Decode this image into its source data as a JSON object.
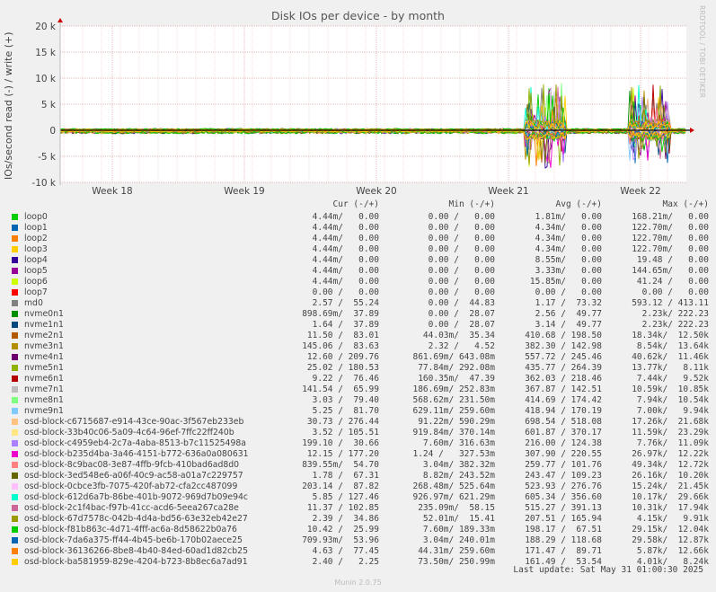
{
  "chart_data": {
    "type": "line",
    "title": "Disk IOs per device - by month",
    "ylabel": "IOs/second read (-) / write (+)",
    "ylim": [
      -10000,
      20000
    ],
    "yticks": [
      {
        "value": 20000,
        "label": "20 k"
      },
      {
        "value": 15000,
        "label": "15 k"
      },
      {
        "value": 10000,
        "label": "10 k"
      },
      {
        "value": 5000,
        "label": "5 k"
      },
      {
        "value": 0,
        "label": "0"
      },
      {
        "value": -5000,
        "label": "-5 k"
      },
      {
        "value": -10000,
        "label": "-10 k"
      }
    ],
    "xticks": [
      "Week 18",
      "Week 19",
      "Week 20",
      "Week 21",
      "Week 22"
    ],
    "grid": true,
    "watermark": "RRDTOOL / TOBI OETIKER",
    "legend_header": {
      "cur": "Cur (-/+)",
      "min": "Min (-/+)",
      "avg": "Avg (-/+)",
      "max": "Max (-/+)"
    },
    "series": [
      {
        "name": "loop0",
        "color": "#00cc00",
        "cur": "4.44m/   0.00",
        "min": "0.00 /   0.00",
        "avg": "1.81m/   0.00",
        "max": "168.21m/   0.00"
      },
      {
        "name": "loop1",
        "color": "#0066b3",
        "cur": "4.44m/   0.00",
        "min": "0.00 /   0.00",
        "avg": "4.34m/   0.00",
        "max": "122.70m/   0.00"
      },
      {
        "name": "loop2",
        "color": "#ff8000",
        "cur": "4.44m/   0.00",
        "min": "0.00 /   0.00",
        "avg": "4.34m/   0.00",
        "max": "122.70m/   0.00"
      },
      {
        "name": "loop3",
        "color": "#ffcc00",
        "cur": "4.44m/   0.00",
        "min": "0.00 /   0.00",
        "avg": "4.34m/   0.00",
        "max": "122.70m/   0.00"
      },
      {
        "name": "loop4",
        "color": "#330099",
        "cur": "4.44m/   0.00",
        "min": "0.00 /   0.00",
        "avg": "8.55m/   0.00",
        "max": "19.48 /   0.00"
      },
      {
        "name": "loop5",
        "color": "#990099",
        "cur": "4.44m/   0.00",
        "min": "0.00 /   0.00",
        "avg": "3.33m/   0.00",
        "max": "144.65m/   0.00"
      },
      {
        "name": "loop6",
        "color": "#ccff00",
        "cur": "4.44m/   0.00",
        "min": "0.00 /   0.00",
        "avg": "15.85m/   0.00",
        "max": "41.24 /   0.00"
      },
      {
        "name": "loop7",
        "color": "#ff0000",
        "cur": "0.00 /   0.00",
        "min": "0.00 /   0.00",
        "avg": "0.00 /   0.00",
        "max": "0.00 /   0.00"
      },
      {
        "name": "md0",
        "color": "#808080",
        "cur": "2.57 /  55.24",
        "min": "0.00 /  44.83",
        "avg": "1.17 /  73.32",
        "max": "593.12 / 413.11"
      },
      {
        "name": "nvme0n1",
        "color": "#008f00",
        "cur": "898.69m/  37.89",
        "min": "0.00 /  28.07",
        "avg": "2.56 /  49.77",
        "max": "2.23k/ 222.23"
      },
      {
        "name": "nvme1n1",
        "color": "#00487d",
        "cur": "1.64 /  37.89",
        "min": "0.00 /  28.07",
        "avg": "3.14 /  49.77",
        "max": "2.23k/ 222.23"
      },
      {
        "name": "nvme2n1",
        "color": "#b35a00",
        "cur": "11.50 /  83.01",
        "min": "44.03m/  35.34",
        "avg": "410.68 / 198.50",
        "max": "18.34k/  12.50k"
      },
      {
        "name": "nvme3n1",
        "color": "#b38f00",
        "cur": "145.06 /  83.63",
        "min": "2.32 /   4.52",
        "avg": "382.30 / 142.98",
        "max": "8.54k/  13.64k"
      },
      {
        "name": "nvme4n1",
        "color": "#6b006b",
        "cur": "12.60 / 209.76",
        "min": "861.69m/ 643.08m",
        "avg": "557.72 / 245.46",
        "max": "40.62k/  11.46k"
      },
      {
        "name": "nvme5n1",
        "color": "#8fb300",
        "cur": "25.02 / 180.53",
        "min": "77.84m/ 292.08m",
        "avg": "435.77 / 264.39",
        "max": "13.77k/   8.11k"
      },
      {
        "name": "nvme6n1",
        "color": "#b30000",
        "cur": "9.22 /  76.46",
        "min": "160.35m/  47.39",
        "avg": "362.03 / 218.46",
        "max": "7.44k/   9.52k"
      },
      {
        "name": "nvme7n1",
        "color": "#bebebe",
        "cur": "141.54 /  65.99",
        "min": "186.69m/ 252.83m",
        "avg": "367.87 / 142.51",
        "max": "10.59k/  10.85k"
      },
      {
        "name": "nvme8n1",
        "color": "#80ff80",
        "cur": "3.03 /  79.40",
        "min": "568.62m/ 231.50m",
        "avg": "414.69 / 174.42",
        "max": "7.94k/  10.54k"
      },
      {
        "name": "nvme9n1",
        "color": "#80c9ff",
        "cur": "5.25 /  81.70",
        "min": "629.11m/ 259.60m",
        "avg": "418.94 / 170.19",
        "max": "7.00k/   9.94k"
      },
      {
        "name": "osd-block-c6715687-e914-43ce-90ac-3f567eb233eb",
        "color": "#ffc080",
        "cur": "30.73 / 276.44",
        "min": "91.22m/ 590.29m",
        "avg": "698.54 / 518.08",
        "max": "17.26k/  21.68k"
      },
      {
        "name": "osd-block-33b40c06-5a09-4c64-96ef-7ffc22ff240b",
        "color": "#ffe680",
        "cur": "3.52 / 105.51",
        "min": "919.84m/ 370.14m",
        "avg": "601.87 / 370.17",
        "max": "11.59k/  23.29k"
      },
      {
        "name": "osd-block-c4959eb4-2c7a-4aba-8513-b7c11525498a",
        "color": "#aa80ff",
        "cur": "199.10 /  30.66",
        "min": "7.60m/ 316.63m",
        "avg": "216.00 / 124.38",
        "max": "7.76k/  11.09k"
      },
      {
        "name": "osd-block-b235d4ba-3a46-4151-b772-636a0a080631",
        "color": "#ee00cc",
        "cur": "12.15 / 177.20",
        "min": "1.24 /   327.53m",
        "avg": "307.90 / 220.55",
        "max": "26.97k/  12.22k"
      },
      {
        "name": "osd-block-8c9bac08-3e87-4ffb-9fcb-410bad6ad8d0",
        "color": "#ff8080",
        "cur": "839.55m/  54.70",
        "min": "3.04m/ 382.32m",
        "avg": "259.77 / 101.76",
        "max": "49.34k/  12.72k"
      },
      {
        "name": "osd-block-3ed548e6-a06f-40c9-ac58-a01a7c229757",
        "color": "#666600",
        "cur": "1.78 /  67.31",
        "min": "8.82m/ 243.52m",
        "avg": "243.47 / 109.23",
        "max": "26.16k/  10.20k"
      },
      {
        "name": "osd-block-0cbce3fb-7075-420f-ab72-cfa2cc487099",
        "color": "#ffbfff",
        "cur": "203.14 /  87.82",
        "min": "268.48m/ 525.64m",
        "avg": "523.93 / 276.76",
        "max": "15.24k/  21.45k"
      },
      {
        "name": "osd-block-612d6a7b-86be-401b-9072-969d7b09e94c",
        "color": "#00ffcc",
        "cur": "5.85 / 127.46",
        "min": "926.97m/ 621.29m",
        "avg": "605.34 / 356.60",
        "max": "10.17k/  29.66k"
      },
      {
        "name": "osd-block-2c1f4bac-f97b-41cc-acd6-5eea267ca28e",
        "color": "#cc6699",
        "cur": "11.37 / 102.85",
        "min": "235.09m/  58.15",
        "avg": "515.27 / 391.13",
        "max": "10.31k/  17.94k"
      },
      {
        "name": "osd-block-67d7578c-042b-4d4a-bd56-63e32eb42e27",
        "color": "#999900",
        "cur": "2.39 /  34.86",
        "min": "52.01m/  15.41",
        "avg": "207.51 / 165.94",
        "max": "4.15k/   9.91k"
      },
      {
        "name": "osd-block-f81b863c-4d71-4fff-ac6a-8d58622b0a76",
        "color": "#00cc00",
        "cur": "10.42 /  25.99",
        "min": "7.60m/ 189.33m",
        "avg": "198.17 /  67.51",
        "max": "29.15k/  12.04k"
      },
      {
        "name": "osd-block-7da6a375-ff44-4b45-be6b-170b02aece25",
        "color": "#0066b3",
        "cur": "709.93m/  53.96",
        "min": "3.04m/ 240.01m",
        "avg": "188.29 / 118.68",
        "max": "29.58k/  12.87k"
      },
      {
        "name": "osd-block-36136266-8be8-4b40-84ed-60ad1d82cb25",
        "color": "#ff8000",
        "cur": "4.63 /  77.45",
        "min": "44.31m/ 259.60m",
        "avg": "171.47 /  89.71",
        "max": "5.87k/  12.66k"
      },
      {
        "name": "osd-block-ba581959-829e-4204-b723-8b8ec6a7ad91",
        "color": "#ffcc00",
        "cur": "2.40 /   2.25",
        "min": "73.50m/ 250.99m",
        "avg": "161.49 /  53.54",
        "max": "4.01k/   8.24k"
      }
    ]
  },
  "footer": {
    "last_update": "Last update: Sat May 31 01:00:30 2025",
    "munin": "Munin 2.0.75"
  }
}
